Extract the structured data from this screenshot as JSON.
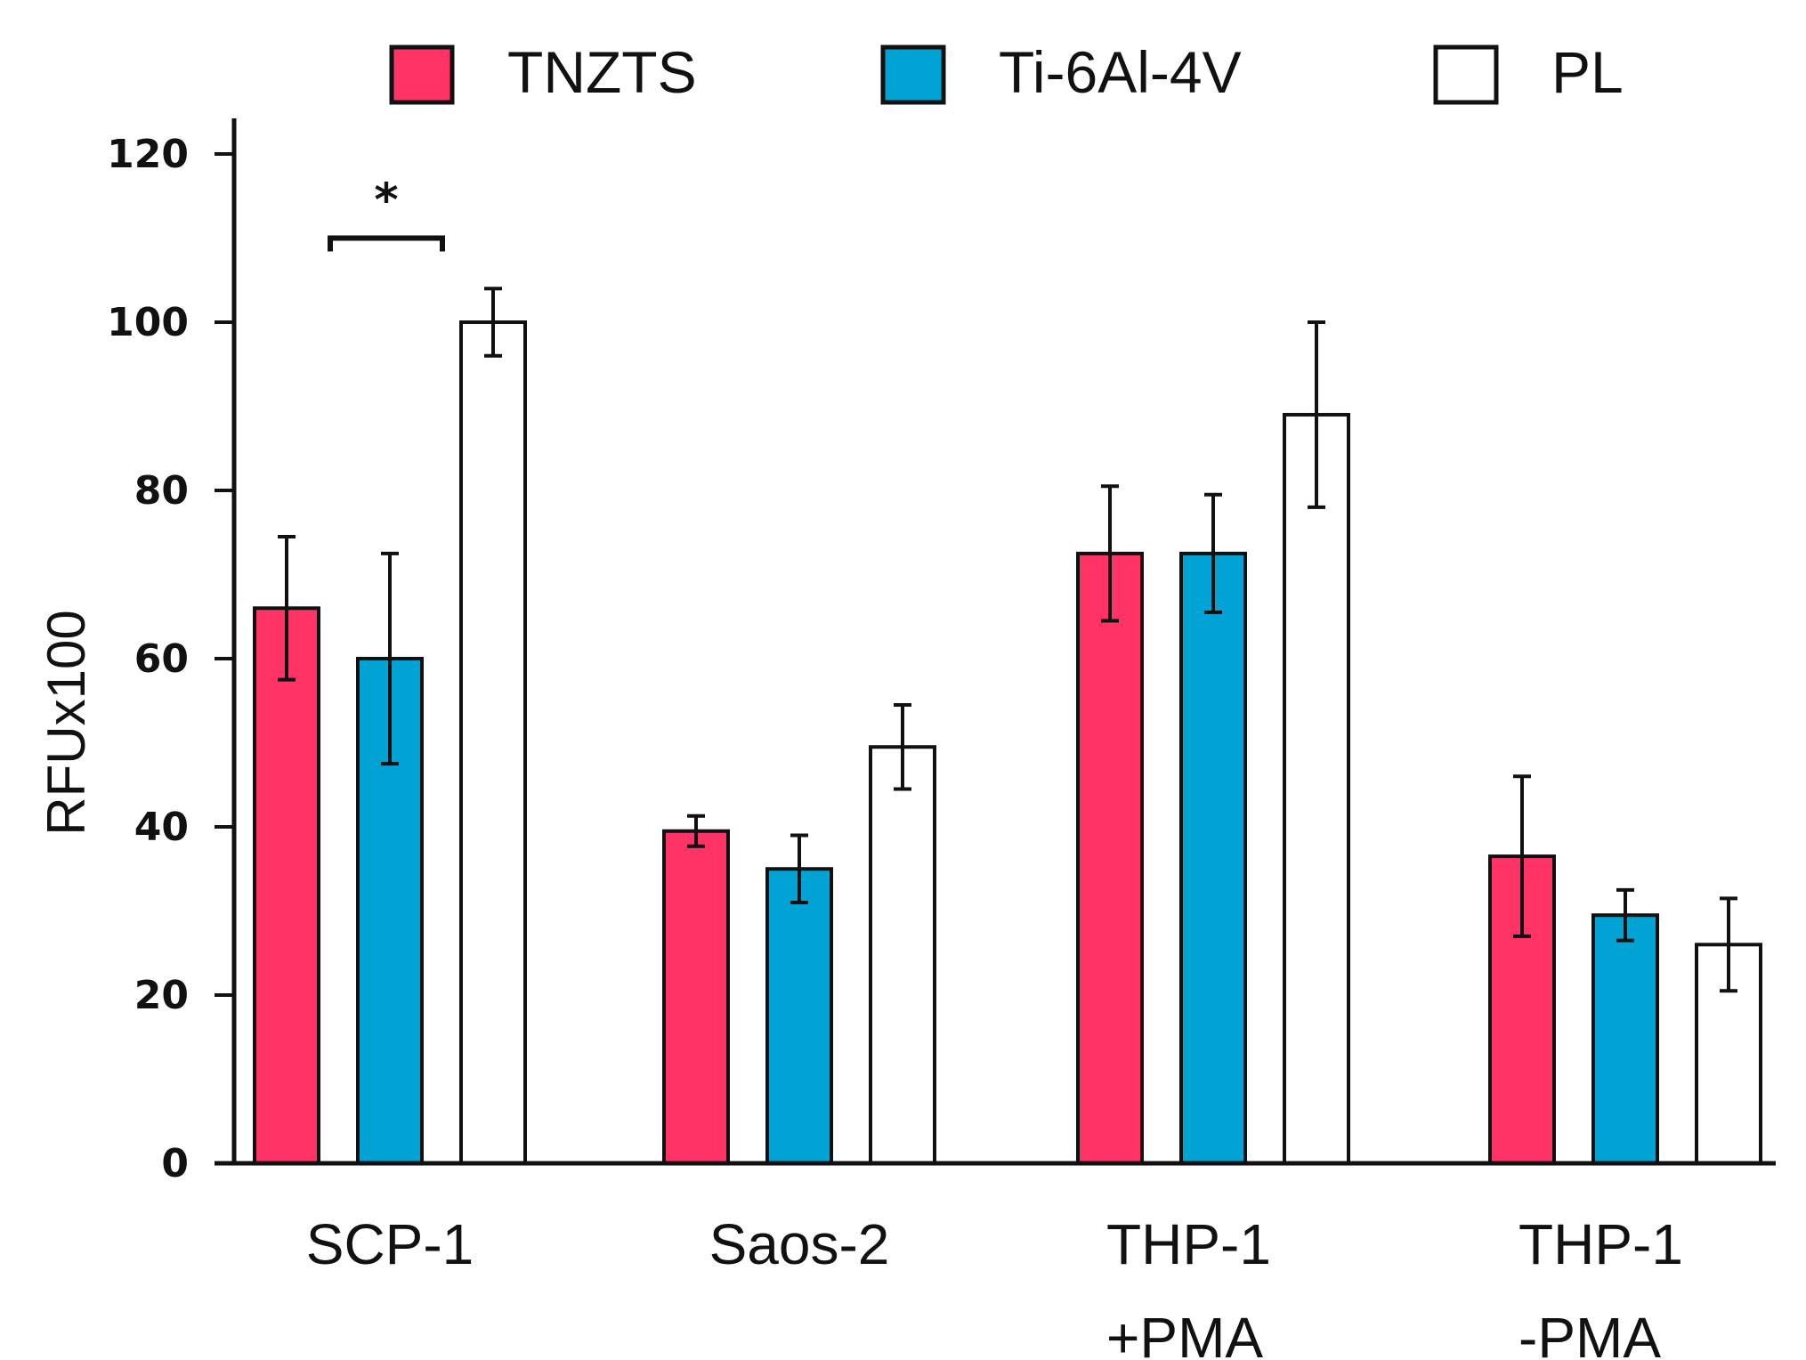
{
  "chart_data": {
    "type": "bar",
    "title": "",
    "xlabel": "",
    "ylabel": "RFUx100",
    "ylim": [
      0,
      120
    ],
    "yticks": [
      0,
      20,
      40,
      60,
      80,
      100,
      120
    ],
    "grid": false,
    "legend_position": "top",
    "categories": [
      {
        "lines": [
          "SCP-1"
        ]
      },
      {
        "lines": [
          "Saos-2"
        ]
      },
      {
        "lines": [
          "THP-1",
          "+PMA"
        ]
      },
      {
        "lines": [
          "THP-1",
          "-PMA"
        ]
      }
    ],
    "series": [
      {
        "name": "TNZTS",
        "color": "#ff3366",
        "values": [
          66,
          39.5,
          72.5,
          36.5
        ],
        "errors": [
          8.5,
          1.8,
          8,
          9.5
        ]
      },
      {
        "name": "Ti-6Al-4V",
        "color": "#00a3d4",
        "values": [
          60,
          35,
          72.5,
          29.5
        ],
        "errors": [
          12.5,
          4,
          7,
          3
        ]
      },
      {
        "name": "PL",
        "color": "#ffffff",
        "values": [
          100,
          49.5,
          89,
          26
        ],
        "errors": [
          4,
          5,
          11,
          5.5
        ]
      }
    ],
    "annotations": [
      {
        "type": "significance",
        "text": "*",
        "category": 0,
        "from_series": 1,
        "to_series": 2,
        "y": 110
      }
    ]
  }
}
